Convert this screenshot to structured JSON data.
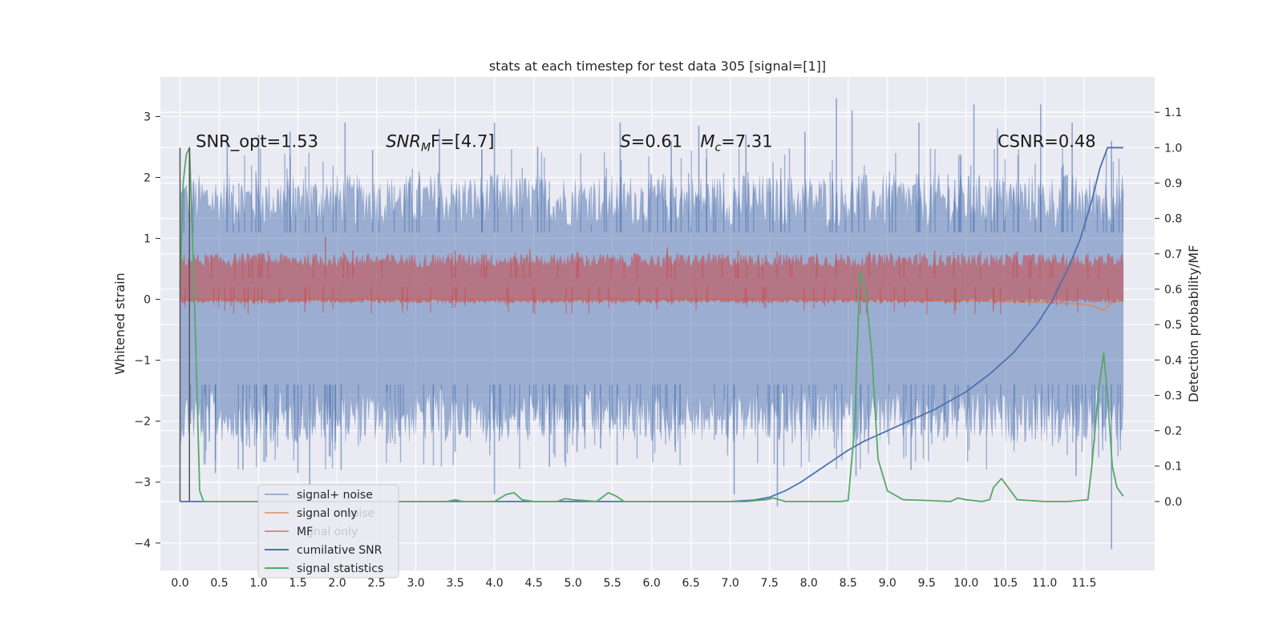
{
  "chart_data": {
    "type": "line",
    "title": "stats at each timestep for test data 305 [signal=[1]]",
    "ylabel": "Whitened strain",
    "y2label": "Detection probability/MF",
    "xlim": [
      -0.25,
      12.4
    ],
    "ylim": [
      -4.45,
      3.65
    ],
    "y2lim": [
      -0.195,
      1.2
    ],
    "grid": true,
    "legend_position": "lower-left",
    "x_ticks": [
      0.0,
      0.5,
      1.0,
      1.5,
      2.0,
      2.5,
      3.0,
      3.5,
      4.0,
      4.5,
      5.0,
      5.5,
      6.0,
      6.5,
      7.0,
      7.5,
      8.0,
      8.5,
      9.0,
      9.5,
      10.0,
      10.5,
      11.0,
      11.5
    ],
    "x_tick_labels": [
      "0.0",
      "0.5",
      "1.0",
      "1.5",
      "2.0",
      "2.5",
      "3.0",
      "3.5",
      "4.0",
      "4.5",
      "5.0",
      "5.5",
      "6.0",
      "6.5",
      "7.0",
      "7.5",
      "8.0",
      "8.5",
      "9.0",
      "9.5",
      "10.0",
      "10.5",
      "11.0",
      "11.5"
    ],
    "y_ticks": [
      -4,
      -3,
      -2,
      -1,
      0,
      1,
      2,
      3
    ],
    "y_tick_labels": [
      "−4",
      "−3",
      "−2",
      "−1",
      "0",
      "1",
      "2",
      "3"
    ],
    "y2_ticks": [
      0.0,
      0.1,
      0.2,
      0.3,
      0.4,
      0.5,
      0.6,
      0.7,
      0.8,
      0.9,
      1.0,
      1.1
    ],
    "y2_tick_labels": [
      "0.0",
      "0.1",
      "0.2",
      "0.3",
      "0.4",
      "0.5",
      "0.6",
      "0.7",
      "0.8",
      "0.9",
      "1.0",
      "1.1"
    ],
    "annotations": [
      {
        "id": "snr-opt",
        "text": "SNR_opt=1.53",
        "x": 0.2,
        "y": 2.5
      },
      {
        "id": "snr-mf",
        "prefix": "SNR",
        "sub": "M",
        "suffix": "F=[4.7]",
        "x": 2.62,
        "y": 2.5
      },
      {
        "id": "s-val",
        "prefix": "S",
        "suffix": "=0.61",
        "x": 5.6,
        "y": 2.5
      },
      {
        "id": "mc-val",
        "prefix": "M",
        "sub": "c",
        "suffix": "=7.31",
        "x": 6.62,
        "y": 2.5
      },
      {
        "id": "csnr",
        "text": "CSNR=0.48",
        "x": 10.4,
        "y": 2.5
      }
    ],
    "series": [
      {
        "name": "signal+ noise",
        "color": "#4c72b0",
        "opacity": 0.5,
        "axis": "left",
        "x_range": [
          0.0,
          12.0
        ],
        "band_upper": 1.3,
        "band_lower": -1.6,
        "spikes": [
          {
            "x": 0.6,
            "y": 2.6
          },
          {
            "x": 1.0,
            "y": 2.7
          },
          {
            "x": 1.4,
            "y": 2.75
          },
          {
            "x": 2.1,
            "y": 2.9
          },
          {
            "x": 2.45,
            "y": 2.45
          },
          {
            "x": 3.3,
            "y": 2.8
          },
          {
            "x": 4.0,
            "y": 2.9
          },
          {
            "x": 4.55,
            "y": 2.5
          },
          {
            "x": 5.6,
            "y": 2.9
          },
          {
            "x": 6.25,
            "y": 2.6
          },
          {
            "x": 6.6,
            "y": 2.85
          },
          {
            "x": 7.2,
            "y": 2.7
          },
          {
            "x": 7.95,
            "y": 2.75
          },
          {
            "x": 8.35,
            "y": 3.3
          },
          {
            "x": 8.55,
            "y": 3.1
          },
          {
            "x": 9.4,
            "y": 2.9
          },
          {
            "x": 10.1,
            "y": 3.2
          },
          {
            "x": 10.4,
            "y": 2.8
          },
          {
            "x": 10.95,
            "y": 3.2
          },
          {
            "x": 11.35,
            "y": 2.9
          },
          {
            "x": 11.85,
            "y": 2.6
          },
          {
            "x": 0.45,
            "y": -2.85
          },
          {
            "x": 0.8,
            "y": -2.8
          },
          {
            "x": 1.5,
            "y": -2.85
          },
          {
            "x": 1.65,
            "y": -3.05
          },
          {
            "x": 2.05,
            "y": -2.8
          },
          {
            "x": 3.5,
            "y": -2.5
          },
          {
            "x": 4.0,
            "y": -3.2
          },
          {
            "x": 4.7,
            "y": -2.75
          },
          {
            "x": 5.05,
            "y": -2.5
          },
          {
            "x": 5.35,
            "y": -2.45
          },
          {
            "x": 6.3,
            "y": -2.5
          },
          {
            "x": 7.05,
            "y": -3.2
          },
          {
            "x": 7.6,
            "y": -3.4
          },
          {
            "x": 8.6,
            "y": -2.9
          },
          {
            "x": 9.3,
            "y": -2.8
          },
          {
            "x": 11.4,
            "y": -2.9
          },
          {
            "x": 11.85,
            "y": -4.1
          }
        ]
      },
      {
        "name": "signal only",
        "color": "#dd8452",
        "opacity": 0.7,
        "axis": "left",
        "x": [
          0.0,
          2.0,
          4.0,
          6.0,
          8.0,
          10.0,
          11.0,
          11.5,
          11.65,
          11.75,
          11.85,
          12.0
        ],
        "y": [
          0.0,
          0.0,
          0.0,
          0.0,
          0.0,
          -0.02,
          -0.05,
          -0.08,
          -0.12,
          -0.18,
          -0.05,
          0.0
        ]
      },
      {
        "name": "MF",
        "color": "#c44e52",
        "opacity": 0.6,
        "axis": "left",
        "x_range": [
          0.0,
          12.0
        ],
        "band_upper": 0.55,
        "band_lower": 0.0,
        "spikes": [
          {
            "x": 1.85,
            "y": 1.02
          },
          {
            "x": 1.0,
            "y": 0.75
          },
          {
            "x": 2.2,
            "y": 0.8
          },
          {
            "x": 3.5,
            "y": 0.8
          },
          {
            "x": 4.45,
            "y": 0.82
          },
          {
            "x": 5.05,
            "y": 0.78
          },
          {
            "x": 6.2,
            "y": 0.85
          },
          {
            "x": 7.1,
            "y": 0.8
          },
          {
            "x": 8.1,
            "y": 0.75
          },
          {
            "x": 9.6,
            "y": 0.8
          },
          {
            "x": 10.65,
            "y": 0.78
          },
          {
            "x": 11.55,
            "y": 0.75
          }
        ]
      },
      {
        "name": "cumilative SNR",
        "color": "#4c72b0",
        "opacity": 1.0,
        "axis": "right",
        "x": [
          0.0,
          0.5,
          1.0,
          2.0,
          3.0,
          4.0,
          5.0,
          6.0,
          7.0,
          7.3,
          7.5,
          7.7,
          7.9,
          8.1,
          8.3,
          8.5,
          8.7,
          9.0,
          9.3,
          9.6,
          10.0,
          10.3,
          10.6,
          10.9,
          11.1,
          11.3,
          11.45,
          11.6,
          11.7,
          11.8,
          11.9,
          12.0
        ],
        "y": [
          0.0,
          0.0,
          0.0,
          0.0,
          0.0,
          0.0,
          0.0,
          0.0,
          0.0,
          0.004,
          0.012,
          0.03,
          0.055,
          0.085,
          0.115,
          0.145,
          0.17,
          0.2,
          0.23,
          0.26,
          0.31,
          0.36,
          0.42,
          0.5,
          0.57,
          0.66,
          0.74,
          0.85,
          0.94,
          1.0,
          1.0,
          1.0
        ]
      },
      {
        "name": "signal statistics",
        "color": "#55a868",
        "opacity": 1.0,
        "axis": "right",
        "x": [
          0.0,
          0.04,
          0.08,
          0.12,
          0.18,
          0.25,
          0.3,
          0.5,
          1.0,
          2.0,
          3.0,
          3.4,
          3.5,
          3.6,
          4.0,
          4.15,
          4.25,
          4.35,
          4.5,
          4.8,
          4.9,
          5.0,
          5.3,
          5.45,
          5.55,
          5.65,
          5.8,
          6.5,
          7.2,
          7.45,
          7.55,
          7.7,
          8.0,
          8.4,
          8.5,
          8.58,
          8.65,
          8.72,
          8.8,
          8.88,
          9.0,
          9.2,
          9.5,
          9.8,
          9.9,
          10.0,
          10.2,
          10.3,
          10.35,
          10.45,
          10.55,
          10.65,
          11.0,
          11.3,
          11.45,
          11.55,
          11.6,
          11.68,
          11.75,
          11.8,
          11.86,
          11.92,
          12.0
        ],
        "y": [
          0.6,
          0.9,
          0.98,
          1.0,
          0.6,
          0.03,
          0.0,
          0.0,
          0.0,
          0.0,
          0.0,
          0.0,
          0.005,
          0.0,
          0.0,
          0.02,
          0.025,
          0.005,
          0.0,
          0.0,
          0.008,
          0.005,
          0.0,
          0.025,
          0.015,
          0.0,
          0.0,
          0.0,
          0.0,
          0.005,
          0.01,
          0.0,
          0.0,
          0.0,
          0.003,
          0.2,
          0.65,
          0.6,
          0.42,
          0.12,
          0.03,
          0.005,
          0.003,
          0.0,
          0.01,
          0.005,
          0.0,
          0.005,
          0.04,
          0.065,
          0.035,
          0.005,
          0.0,
          0.0,
          0.003,
          0.005,
          0.1,
          0.3,
          0.42,
          0.3,
          0.1,
          0.04,
          0.015
        ]
      }
    ],
    "legend": [
      {
        "label": "signal+ noise",
        "color": "#4c72b0",
        "opacity": 0.5
      },
      {
        "label": "signal only",
        "color": "#dd8452",
        "opacity": 0.7
      },
      {
        "label": "MF",
        "color": "#c44e52",
        "opacity": 0.6
      },
      {
        "label": "cumilative SNR",
        "color": "#4c72b0",
        "opacity": 1.0
      },
      {
        "label": "signal statistics",
        "color": "#55a868",
        "opacity": 1.0
      }
    ],
    "ghost_legend_text": [
      "noise",
      "gnal only"
    ],
    "marker_lines": [
      {
        "x": 0.0,
        "y_from": 1.0,
        "y_to": 0.0,
        "color": "#555555"
      },
      {
        "x": 0.12,
        "y_from": 1.0,
        "y_to": 0.0,
        "color": "#555555"
      }
    ]
  }
}
